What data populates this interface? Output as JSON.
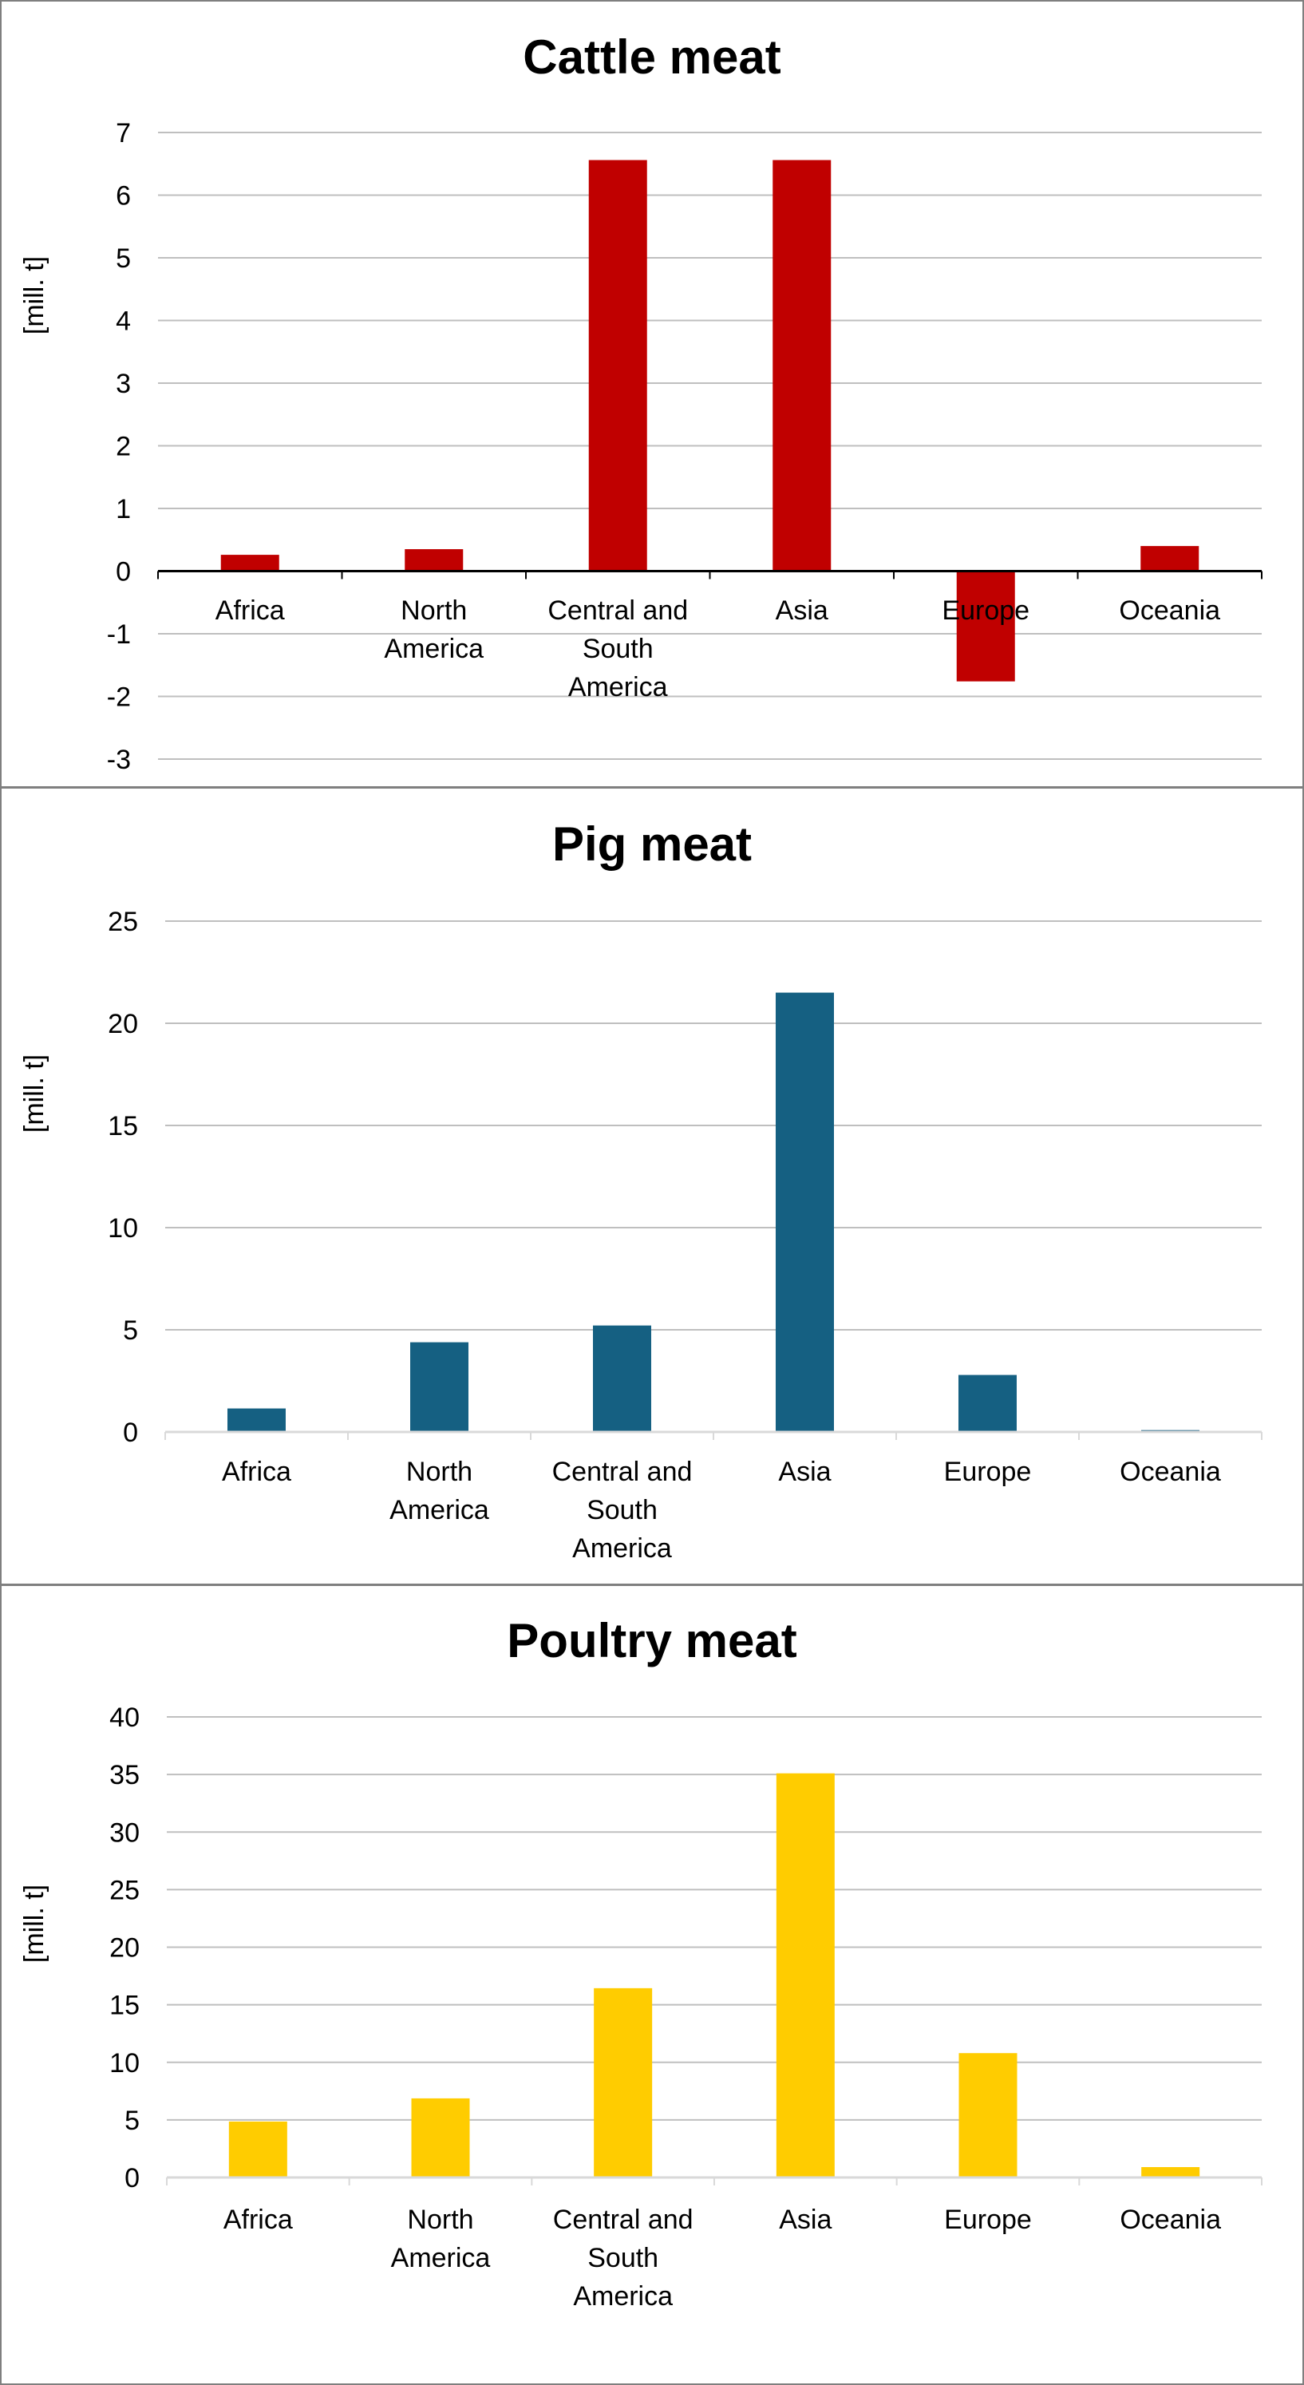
{
  "chart_data": [
    {
      "type": "bar",
      "title": "Cattle meat",
      "ylabel": "[mill. t]",
      "xlabel": "",
      "categories": [
        "Africa",
        "North America",
        "Central and South America",
        "Asia",
        "Europe",
        "Oceania"
      ],
      "category_lines": [
        [
          "Africa"
        ],
        [
          "North",
          "America"
        ],
        [
          "Central and",
          "South",
          "America"
        ],
        [
          "Asia"
        ],
        [
          "Europe"
        ],
        [
          "Oceania"
        ]
      ],
      "values": [
        0.26,
        0.35,
        6.56,
        6.56,
        -1.76,
        0.4
      ],
      "ylim": [
        -3,
        7
      ],
      "yticks": [
        "7",
        "6",
        "5",
        "4",
        "3",
        "2",
        "1",
        "0",
        "-1",
        "-2",
        "-3"
      ],
      "grid": true,
      "color": "#C00000",
      "axis_color": "#000000"
    },
    {
      "type": "bar",
      "title": "Pig meat",
      "ylabel": "[mill. t]",
      "xlabel": "",
      "categories": [
        "Africa",
        "North America",
        "Central and South America",
        "Asia",
        "Europe",
        "Oceania"
      ],
      "category_lines": [
        [
          "Africa"
        ],
        [
          "North",
          "America"
        ],
        [
          "Central and",
          "South",
          "America"
        ],
        [
          "Asia"
        ],
        [
          "Europe"
        ],
        [
          "Oceania"
        ]
      ],
      "values": [
        1.15,
        4.39,
        5.21,
        21.5,
        2.79,
        0.09
      ],
      "ylim": [
        0,
        25
      ],
      "yticks": [
        "25",
        "20",
        "15",
        "10",
        "5",
        "0"
      ],
      "grid": true,
      "color": "#156082",
      "axis_color": "#D9D9D9"
    },
    {
      "type": "bar",
      "title": "Poultry meat",
      "ylabel": "[mill. t]",
      "xlabel": "",
      "categories": [
        "Africa",
        "North America",
        "Central and South America",
        "Asia",
        "Europe",
        "Oceania"
      ],
      "category_lines": [
        [
          "Africa"
        ],
        [
          "North",
          "America"
        ],
        [
          "Central and",
          "South",
          "America"
        ],
        [
          "Asia"
        ],
        [
          "Europe"
        ],
        [
          "Oceania"
        ]
      ],
      "values": [
        4.86,
        6.87,
        16.44,
        35.1,
        10.8,
        0.9
      ],
      "ylim": [
        0,
        40
      ],
      "yticks": [
        "40",
        "35",
        "30",
        "25",
        "20",
        "15",
        "10",
        "5",
        "0"
      ],
      "grid": true,
      "color": "#FFCC00",
      "axis_color": "#D9D9D9"
    }
  ]
}
